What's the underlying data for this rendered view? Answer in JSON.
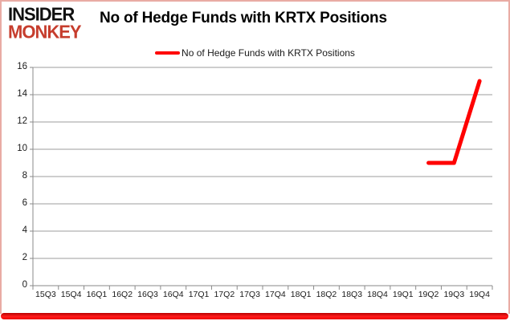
{
  "logo": {
    "line1": "INSIDER",
    "line2": "MONKEY"
  },
  "header": {
    "title": "No of Hedge Funds with KRTX Positions"
  },
  "legend": {
    "label": "No of Hedge Funds with KRTX Positions"
  },
  "colors": {
    "series_red": "#ff0000",
    "logo_red": "#c63d2d",
    "grid": "#9d9d9d",
    "axis": "#8a8a8a",
    "border_pink": "#e9aba4",
    "bottom_bar_red": "#e60000",
    "text": "#1a1a1a"
  },
  "chart_data": {
    "type": "line",
    "title": "No of Hedge Funds with KRTX Positions",
    "xlabel": "",
    "ylabel": "",
    "categories": [
      "15Q3",
      "15Q4",
      "16Q1",
      "16Q2",
      "16Q3",
      "16Q4",
      "17Q1",
      "17Q2",
      "17Q3",
      "17Q4",
      "18Q1",
      "18Q2",
      "18Q3",
      "18Q4",
      "19Q1",
      "19Q2",
      "19Q3",
      "19Q4"
    ],
    "series": [
      {
        "name": "No of Hedge Funds with KRTX Positions",
        "color": "#ff0000",
        "values": [
          null,
          null,
          null,
          null,
          null,
          null,
          null,
          null,
          null,
          null,
          null,
          null,
          null,
          null,
          null,
          9,
          9,
          15
        ]
      }
    ],
    "ylim": [
      0,
      16
    ],
    "ytick_step": 2,
    "grid": "horizontal",
    "legend_position": "top-center"
  }
}
